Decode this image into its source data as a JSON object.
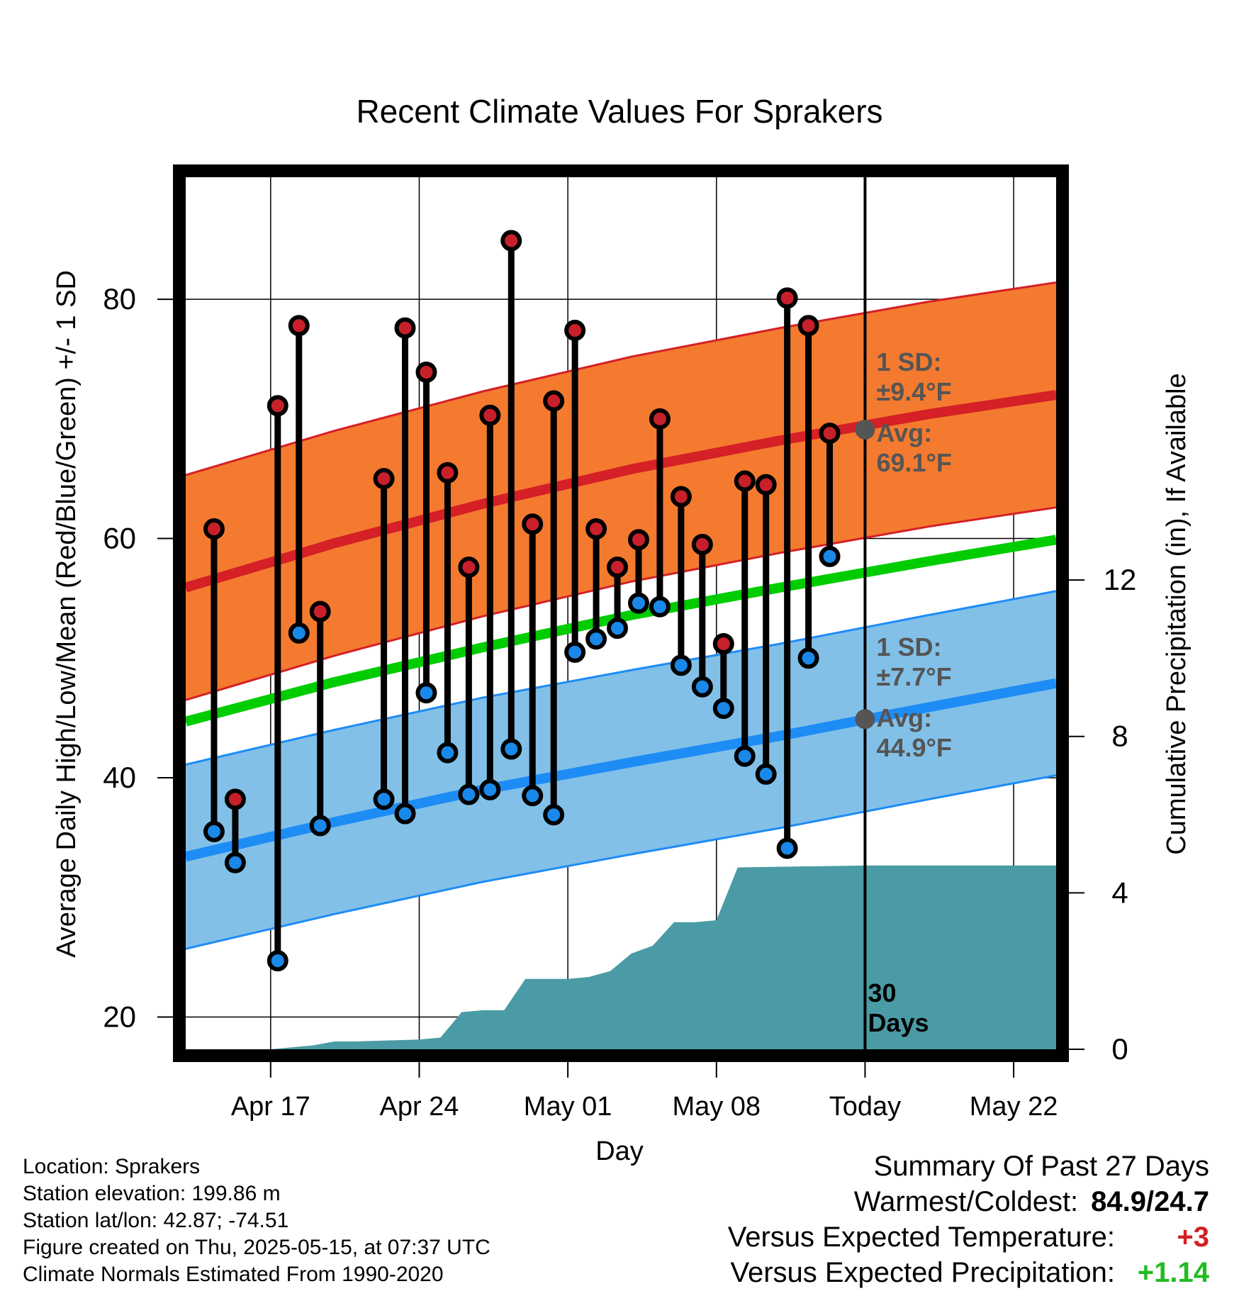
{
  "chart_data": {
    "type": "line",
    "title": "Recent Climate Values For Sprakers",
    "xlabel": "Day",
    "ylabel": "Average Daily High/Low/Mean (Red/Blue/Green) +/- 1 SD",
    "y2label": "Cumulative Precipitation (in), If Available",
    "xlim": [
      "2025-04-13",
      "2025-05-24"
    ],
    "ylim": [
      17.3,
      90.2
    ],
    "y_ticks": [
      "20",
      "40",
      "60",
      "80"
    ],
    "y2lim": [
      0,
      22.3
    ],
    "y2_ticks": [
      "0",
      "4",
      "8",
      "12"
    ],
    "x_ticks": [
      {
        "date": "2025-04-17",
        "label": "Apr 17"
      },
      {
        "date": "2025-04-24",
        "label": "Apr 24"
      },
      {
        "date": "2025-05-01",
        "label": "May 01"
      },
      {
        "date": "2025-05-08",
        "label": "May 08"
      },
      {
        "date": "2025-05-15",
        "label": "Today"
      },
      {
        "date": "2025-05-22",
        "label": "May 22"
      }
    ],
    "today": "2025-05-15",
    "grid": true,
    "normals": {
      "dates": [
        "2025-04-13",
        "2025-04-20",
        "2025-04-27",
        "2025-05-04",
        "2025-05-11",
        "2025-05-18",
        "2025-05-24"
      ],
      "high_avg": [
        55.9,
        59.6,
        62.9,
        65.8,
        68.2,
        70.4,
        72.0
      ],
      "high_sd": 9.4,
      "low_avg": [
        33.4,
        36.3,
        39.0,
        41.3,
        43.5,
        45.9,
        47.9
      ],
      "low_sd": 7.7,
      "mean_avg": [
        44.7,
        48.0,
        50.9,
        53.6,
        55.9,
        58.1,
        59.9
      ]
    },
    "daily": {
      "dates": [
        "2025-04-14",
        "2025-04-15",
        "2025-04-16",
        "2025-04-17",
        "2025-04-18",
        "2025-04-19",
        "2025-04-20",
        "2025-04-21",
        "2025-04-22",
        "2025-04-23",
        "2025-04-24",
        "2025-04-25",
        "2025-04-26",
        "2025-04-27",
        "2025-04-28",
        "2025-04-29",
        "2025-04-30",
        "2025-05-01",
        "2025-05-02",
        "2025-05-03",
        "2025-05-04",
        "2025-05-05",
        "2025-05-06",
        "2025-05-07",
        "2025-05-08",
        "2025-05-09",
        "2025-05-10",
        "2025-05-11",
        "2025-05-12",
        "2025-05-13",
        "2025-05-14"
      ],
      "high": [
        60.8,
        38.2,
        null,
        71.1,
        77.8,
        53.9,
        null,
        null,
        65.0,
        77.6,
        73.9,
        65.5,
        57.6,
        70.3,
        84.9,
        61.2,
        71.5,
        77.4,
        60.8,
        57.6,
        59.9,
        70.0,
        63.5,
        59.5,
        51.2,
        64.8,
        64.5,
        80.1,
        77.8,
        68.8,
        null
      ],
      "low": [
        35.5,
        32.9,
        null,
        24.7,
        52.1,
        36.0,
        null,
        null,
        38.2,
        37.0,
        47.1,
        42.1,
        38.6,
        39.0,
        42.4,
        38.5,
        36.9,
        50.5,
        51.6,
        52.5,
        54.6,
        54.3,
        49.4,
        47.6,
        45.8,
        41.8,
        40.3,
        34.1,
        50.0,
        58.5,
        null
      ]
    },
    "precip": {
      "dates": [
        "2025-04-13",
        "2025-04-17",
        "2025-04-18",
        "2025-04-19",
        "2025-04-20",
        "2025-04-21",
        "2025-04-24",
        "2025-04-25",
        "2025-04-26",
        "2025-04-27",
        "2025-04-28",
        "2025-04-29",
        "2025-04-30",
        "2025-05-01",
        "2025-05-02",
        "2025-05-03",
        "2025-05-04",
        "2025-05-05",
        "2025-05-06",
        "2025-05-07",
        "2025-05-08",
        "2025-05-09",
        "2025-05-15",
        "2025-05-24"
      ],
      "values": [
        0,
        0,
        0.05,
        0.1,
        0.2,
        0.2,
        0.25,
        0.3,
        0.95,
        1.0,
        1.0,
        1.8,
        1.8,
        1.8,
        1.85,
        2.0,
        2.45,
        2.65,
        3.25,
        3.25,
        3.3,
        4.65,
        4.7,
        4.7
      ]
    },
    "annotations": {
      "high_sd_label": "1 SD:",
      "high_sd_value": "±9.4°F",
      "high_avg_label": "Avg:",
      "high_avg_value": "69.1°F",
      "low_sd_label": "1 SD:",
      "low_sd_value": "±7.7°F",
      "low_avg_label": "Avg:",
      "low_avg_value": "44.9°F",
      "today_high_avg": 69.1,
      "today_low_avg": 44.9,
      "days_label_1": "30",
      "days_label_2": "Days"
    },
    "colors": {
      "high_band": "#f47a2f",
      "high_line": "#d42026",
      "low_band": "#82c0e8",
      "low_line": "#1e8cf5",
      "mean_line": "#00cc00",
      "precip": "#4a9ba5",
      "high_dot": "#c8202a",
      "low_dot": "#1a88e8",
      "annotation": "#555555"
    }
  },
  "info": {
    "location": "Location: Sprakers",
    "elevation": "Station elevation: 199.86 m",
    "latlon": "Station lat/lon: 42.87; -74.51",
    "created": "Figure created on Thu, 2025-05-15, at 07:37 UTC",
    "normals": "Climate Normals Estimated From 1990-2020"
  },
  "summary": {
    "title": "Summary Of Past 27 Days",
    "warm_cold_label": "Warmest/Coldest:",
    "warm_cold_value": "84.9/24.7",
    "temp_label": "Versus Expected Temperature:",
    "temp_value": "+3",
    "temp_color": "#d42026",
    "precip_label": "Versus Expected Precipitation:",
    "precip_value": "+1.14",
    "precip_color": "#22bb22"
  }
}
